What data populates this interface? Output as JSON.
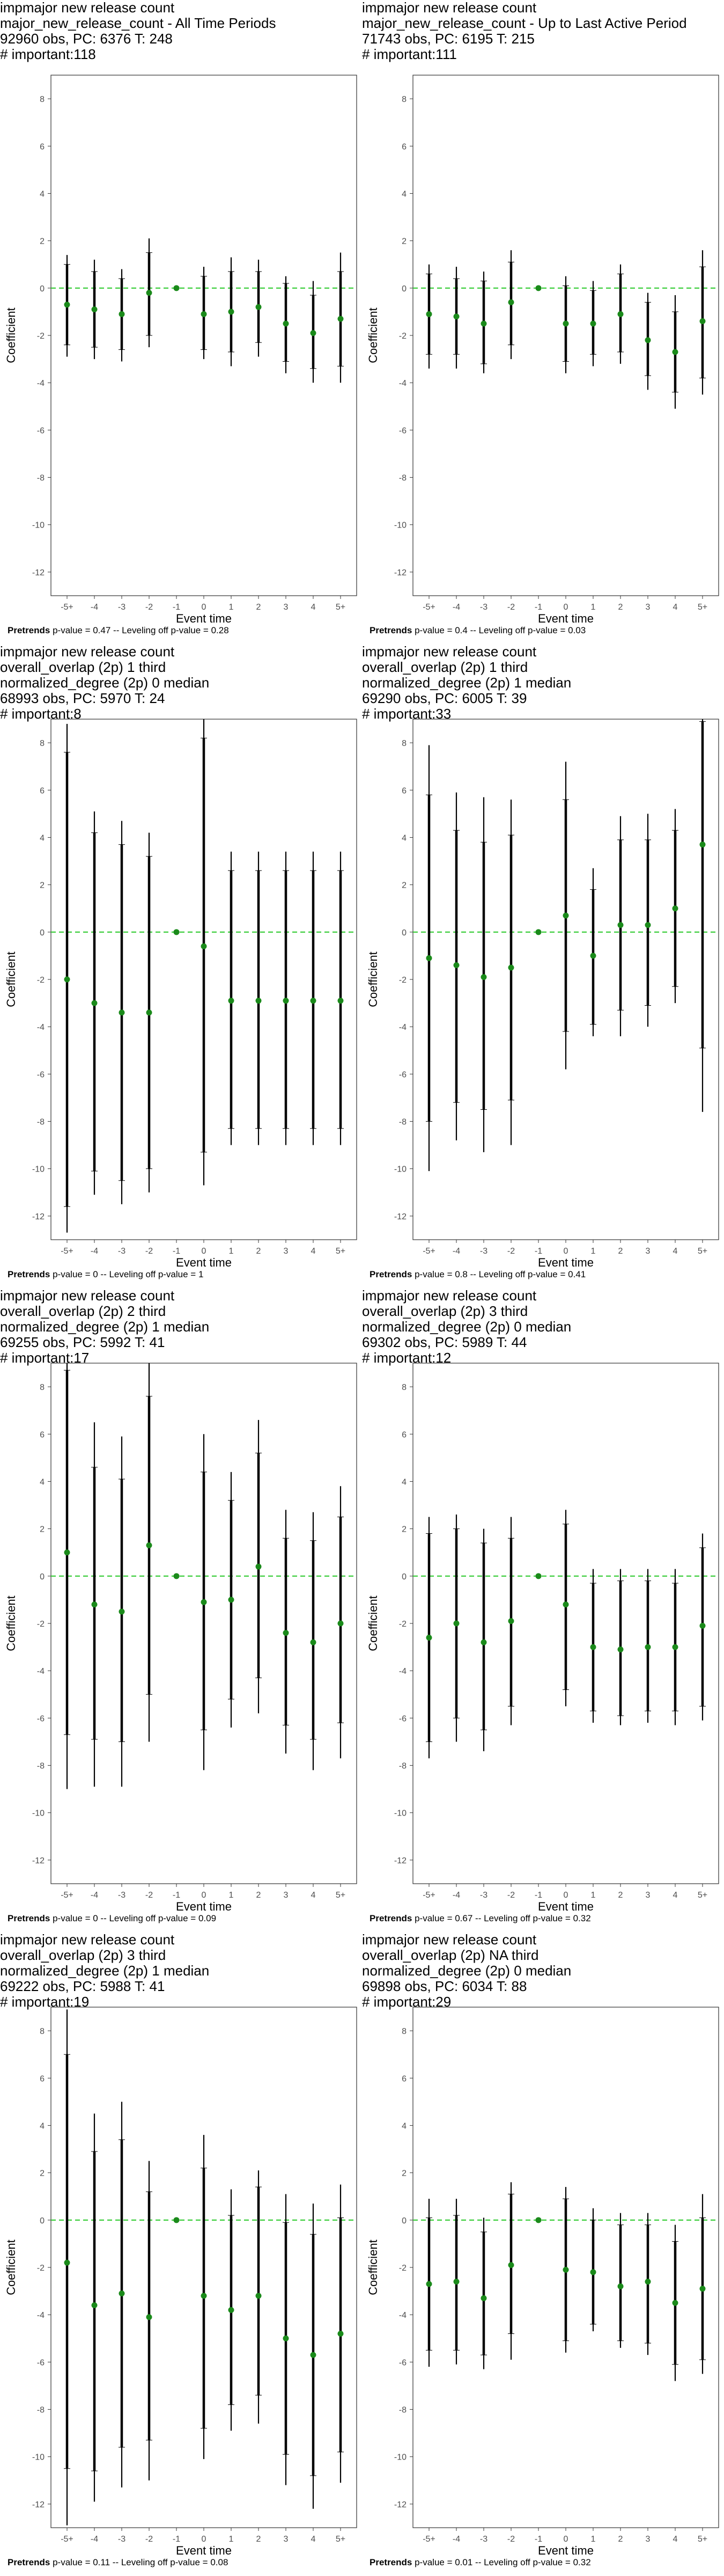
{
  "chart_data": [
    {
      "type": "scatter",
      "title_lines": [
        "impmajor new release count",
        "major_new_release_count - All Time Periods",
        "92960 obs, PC: 6376 T: 248",
        "# important:118"
      ],
      "xlabel": "Event time",
      "ylabel": "Coefficient",
      "categories": [
        "-5+",
        "-4",
        "-3",
        "-2",
        "-1",
        "0",
        "1",
        "2",
        "3",
        "4",
        "5+"
      ],
      "ylim": [
        -13,
        9
      ],
      "yticks": [
        -12,
        -10,
        -8,
        -6,
        -4,
        -2,
        0,
        2,
        4,
        6,
        8
      ],
      "coef": [
        -0.7,
        -0.9,
        -1.1,
        -0.2,
        0,
        -1.1,
        -1.0,
        -0.8,
        -1.5,
        -1.9,
        -1.3
      ],
      "ci90": [
        [
          -2.4,
          1.0
        ],
        [
          -2.5,
          0.7
        ],
        [
          -2.6,
          0.4
        ],
        [
          -2.0,
          1.5
        ],
        [
          0,
          0
        ],
        [
          -2.6,
          0.5
        ],
        [
          -2.7,
          0.7
        ],
        [
          -2.3,
          0.7
        ],
        [
          -3.1,
          0.2
        ],
        [
          -3.4,
          -0.3
        ],
        [
          -3.3,
          0.7
        ]
      ],
      "ci95": [
        [
          -2.9,
          1.4
        ],
        [
          -3.0,
          1.2
        ],
        [
          -3.1,
          0.8
        ],
        [
          -2.5,
          2.1
        ],
        [
          0,
          0
        ],
        [
          -3.0,
          0.9
        ],
        [
          -3.3,
          1.3
        ],
        [
          -2.9,
          1.2
        ],
        [
          -3.6,
          0.5
        ],
        [
          -4.0,
          0.3
        ],
        [
          -4.0,
          1.5
        ]
      ],
      "footer_label": "Pretrends",
      "footer_rest": " p-value = 0.47 -- Leveling off p-value = 0.28"
    },
    {
      "type": "scatter",
      "title_lines": [
        "impmajor new release count",
        "major_new_release_count - Up to Last Active Period",
        "71743 obs, PC: 6195 T: 215",
        "# important:111"
      ],
      "xlabel": "Event time",
      "ylabel": "Coefficient",
      "categories": [
        "-5+",
        "-4",
        "-3",
        "-2",
        "-1",
        "0",
        "1",
        "2",
        "3",
        "4",
        "5+"
      ],
      "ylim": [
        -13,
        9
      ],
      "yticks": [
        -12,
        -10,
        -8,
        -6,
        -4,
        -2,
        0,
        2,
        4,
        6,
        8
      ],
      "coef": [
        -1.1,
        -1.2,
        -1.5,
        -0.6,
        0,
        -1.5,
        -1.5,
        -1.1,
        -2.2,
        -2.7,
        -1.4
      ],
      "ci90": [
        [
          -2.8,
          0.6
        ],
        [
          -2.8,
          0.4
        ],
        [
          -3.2,
          0.3
        ],
        [
          -2.4,
          1.1
        ],
        [
          0,
          0
        ],
        [
          -3.1,
          0.1
        ],
        [
          -2.8,
          -0.1
        ],
        [
          -2.7,
          0.6
        ],
        [
          -3.7,
          -0.6
        ],
        [
          -4.4,
          -1.0
        ],
        [
          -3.8,
          0.9
        ]
      ],
      "ci95": [
        [
          -3.4,
          1.0
        ],
        [
          -3.4,
          0.9
        ],
        [
          -3.6,
          0.7
        ],
        [
          -3.0,
          1.6
        ],
        [
          0,
          0
        ],
        [
          -3.6,
          0.5
        ],
        [
          -3.3,
          0.3
        ],
        [
          -3.2,
          1.0
        ],
        [
          -4.3,
          -0.2
        ],
        [
          -5.1,
          -0.3
        ],
        [
          -4.5,
          1.6
        ]
      ],
      "footer_label": "Pretrends",
      "footer_rest": " p-value = 0.4 -- Leveling off p-value = 0.03"
    },
    {
      "type": "scatter",
      "title_lines": [
        "impmajor new release count",
        "overall_overlap (2p) 1 third",
        "normalized_degree (2p) 0 median",
        "68993 obs, PC: 5970 T: 24",
        "# important:8"
      ],
      "xlabel": "Event time",
      "ylabel": "Coefficient",
      "categories": [
        "-5+",
        "-4",
        "-3",
        "-2",
        "-1",
        "0",
        "1",
        "2",
        "3",
        "4",
        "5+"
      ],
      "ylim": [
        -13,
        9
      ],
      "yticks": [
        -12,
        -10,
        -8,
        -6,
        -4,
        -2,
        0,
        2,
        4,
        6,
        8
      ],
      "coef": [
        -2.0,
        -3.0,
        -3.4,
        -3.4,
        0,
        -0.6,
        -2.9,
        -2.9,
        -2.9,
        -2.9,
        -2.9
      ],
      "ci90": [
        [
          -11.6,
          7.6
        ],
        [
          -10.1,
          4.2
        ],
        [
          -10.5,
          3.7
        ],
        [
          -10.0,
          3.2
        ],
        [
          0,
          0
        ],
        [
          -9.3,
          8.2
        ],
        [
          -8.3,
          2.6
        ],
        [
          -8.3,
          2.6
        ],
        [
          -8.3,
          2.6
        ],
        [
          -8.3,
          2.6
        ],
        [
          -8.3,
          2.6
        ]
      ],
      "ci95": [
        [
          -12.7,
          8.8
        ],
        [
          -11.1,
          5.1
        ],
        [
          -11.5,
          4.7
        ],
        [
          -11.0,
          4.2
        ],
        [
          0,
          0
        ],
        [
          -10.7,
          9.5
        ],
        [
          -9.0,
          3.4
        ],
        [
          -9.0,
          3.4
        ],
        [
          -9.0,
          3.4
        ],
        [
          -9.0,
          3.4
        ],
        [
          -9.0,
          3.4
        ]
      ],
      "footer_label": "Pretrends",
      "footer_rest": " p-value = 0 -- Leveling off p-value = 1"
    },
    {
      "type": "scatter",
      "title_lines": [
        "impmajor new release count",
        "overall_overlap (2p) 1 third",
        "normalized_degree (2p) 1 median",
        "69290 obs, PC: 6005 T: 39",
        "# important:33"
      ],
      "xlabel": "Event time",
      "ylabel": "Coefficient",
      "categories": [
        "-5+",
        "-4",
        "-3",
        "-2",
        "-1",
        "0",
        "1",
        "2",
        "3",
        "4",
        "5+"
      ],
      "ylim": [
        -13,
        9
      ],
      "yticks": [
        -12,
        -10,
        -8,
        -6,
        -4,
        -2,
        0,
        2,
        4,
        6,
        8
      ],
      "coef": [
        -1.1,
        -1.4,
        -1.9,
        -1.5,
        0,
        0.7,
        -1.0,
        0.3,
        0.3,
        1.0,
        3.7
      ],
      "ci90": [
        [
          -8.0,
          5.8
        ],
        [
          -7.2,
          4.3
        ],
        [
          -7.5,
          3.8
        ],
        [
          -7.1,
          4.1
        ],
        [
          0,
          0
        ],
        [
          -4.2,
          5.6
        ],
        [
          -3.9,
          1.8
        ],
        [
          -3.3,
          3.9
        ],
        [
          -3.1,
          3.9
        ],
        [
          -2.3,
          4.3
        ],
        [
          -4.9,
          8.9
        ]
      ],
      "ci95": [
        [
          -10.1,
          7.9
        ],
        [
          -8.8,
          5.9
        ],
        [
          -9.3,
          5.7
        ],
        [
          -9.0,
          5.6
        ],
        [
          0,
          0
        ],
        [
          -5.8,
          7.2
        ],
        [
          -4.4,
          2.7
        ],
        [
          -4.4,
          4.9
        ],
        [
          -4.0,
          5.0
        ],
        [
          -3.0,
          5.2
        ],
        [
          -7.6,
          9.0
        ]
      ],
      "footer_label": "Pretrends",
      "footer_rest": " p-value = 0.8 -- Leveling off p-value = 0.41"
    },
    {
      "type": "scatter",
      "title_lines": [
        "impmajor new release count",
        "overall_overlap (2p) 2 third",
        "normalized_degree (2p) 1 median",
        "69255 obs, PC: 5992 T: 41",
        "# important:17"
      ],
      "xlabel": "Event time",
      "ylabel": "Coefficient",
      "categories": [
        "-5+",
        "-4",
        "-3",
        "-2",
        "-1",
        "0",
        "1",
        "2",
        "3",
        "4",
        "5+"
      ],
      "ylim": [
        -13,
        9
      ],
      "yticks": [
        -12,
        -10,
        -8,
        -6,
        -4,
        -2,
        0,
        2,
        4,
        6,
        8
      ],
      "coef": [
        1.0,
        -1.2,
        -1.5,
        1.3,
        0,
        -1.1,
        -1.0,
        0.4,
        -2.4,
        -2.8,
        -2.0
      ],
      "ci90": [
        [
          -6.7,
          8.7
        ],
        [
          -6.9,
          4.6
        ],
        [
          -7.0,
          4.1
        ],
        [
          -5.0,
          7.6
        ],
        [
          0,
          0
        ],
        [
          -6.5,
          4.4
        ],
        [
          -5.2,
          3.2
        ],
        [
          -4.3,
          5.2
        ],
        [
          -6.3,
          1.6
        ],
        [
          -6.9,
          1.5
        ],
        [
          -6.2,
          2.5
        ]
      ],
      "ci95": [
        [
          -9.0,
          9.0
        ],
        [
          -8.9,
          6.5
        ],
        [
          -8.9,
          5.9
        ],
        [
          -7.0,
          9.0
        ],
        [
          0,
          0
        ],
        [
          -8.2,
          6.0
        ],
        [
          -6.4,
          4.4
        ],
        [
          -5.8,
          6.6
        ],
        [
          -7.5,
          2.8
        ],
        [
          -8.2,
          2.7
        ],
        [
          -7.7,
          3.8
        ]
      ],
      "footer_label": "Pretrends",
      "footer_rest": " p-value = 0 -- Leveling off p-value = 0.09"
    },
    {
      "type": "scatter",
      "title_lines": [
        "impmajor new release count",
        "overall_overlap (2p) 3 third",
        "normalized_degree (2p) 0 median",
        "69302 obs, PC: 5989 T: 44",
        "# important:12"
      ],
      "xlabel": "Event time",
      "ylabel": "Coefficient",
      "categories": [
        "-5+",
        "-4",
        "-3",
        "-2",
        "-1",
        "0",
        "1",
        "2",
        "3",
        "4",
        "5+"
      ],
      "ylim": [
        -13,
        9
      ],
      "yticks": [
        -12,
        -10,
        -8,
        -6,
        -4,
        -2,
        0,
        2,
        4,
        6,
        8
      ],
      "coef": [
        -2.6,
        -2.0,
        -2.8,
        -1.9,
        0,
        -1.2,
        -3.0,
        -3.1,
        -3.0,
        -3.0,
        -2.1
      ],
      "ci90": [
        [
          -7.0,
          1.8
        ],
        [
          -6.0,
          2.0
        ],
        [
          -6.5,
          1.4
        ],
        [
          -5.5,
          1.6
        ],
        [
          0,
          0
        ],
        [
          -4.8,
          2.2
        ],
        [
          -5.7,
          -0.3
        ],
        [
          -5.9,
          -0.2
        ],
        [
          -5.7,
          -0.2
        ],
        [
          -5.7,
          -0.3
        ],
        [
          -5.5,
          1.2
        ]
      ],
      "ci95": [
        [
          -7.7,
          2.5
        ],
        [
          -7.0,
          2.6
        ],
        [
          -7.4,
          2.0
        ],
        [
          -6.3,
          2.5
        ],
        [
          0,
          0
        ],
        [
          -5.5,
          2.8
        ],
        [
          -6.2,
          0.3
        ],
        [
          -6.3,
          0.3
        ],
        [
          -6.2,
          0.3
        ],
        [
          -6.3,
          0.3
        ],
        [
          -6.1,
          1.8
        ]
      ],
      "footer_label": "Pretrends",
      "footer_rest": " p-value = 0.67 -- Leveling off p-value = 0.32"
    },
    {
      "type": "scatter",
      "title_lines": [
        "impmajor new release count",
        "overall_overlap (2p) 3 third",
        "normalized_degree (2p) 1 median",
        "69222 obs, PC: 5988 T: 41",
        "# important:19"
      ],
      "xlabel": "Event time",
      "ylabel": "Coefficient",
      "categories": [
        "-5+",
        "-4",
        "-3",
        "-2",
        "-1",
        "0",
        "1",
        "2",
        "3",
        "4",
        "5+"
      ],
      "ylim": [
        -13,
        9
      ],
      "yticks": [
        -12,
        -10,
        -8,
        -6,
        -4,
        -2,
        0,
        2,
        4,
        6,
        8
      ],
      "coef": [
        -1.8,
        -3.6,
        -3.1,
        -4.1,
        0,
        -3.2,
        -3.8,
        -3.2,
        -5.0,
        -5.7,
        -4.8
      ],
      "ci90": [
        [
          -10.5,
          7.0
        ],
        [
          -10.6,
          2.9
        ],
        [
          -9.6,
          3.4
        ],
        [
          -9.3,
          1.2
        ],
        [
          0,
          0
        ],
        [
          -8.8,
          2.2
        ],
        [
          -7.8,
          0.2
        ],
        [
          -7.4,
          1.4
        ],
        [
          -9.9,
          -0.1
        ],
        [
          -10.8,
          -0.6
        ],
        [
          -9.8,
          0.1
        ]
      ],
      "ci95": [
        [
          -12.9,
          8.9
        ],
        [
          -11.9,
          4.5
        ],
        [
          -11.3,
          5.0
        ],
        [
          -11.0,
          2.5
        ],
        [
          0,
          0
        ],
        [
          -10.1,
          3.6
        ],
        [
          -8.9,
          1.3
        ],
        [
          -8.6,
          2.1
        ],
        [
          -11.2,
          1.1
        ],
        [
          -12.2,
          0.7
        ],
        [
          -11.1,
          1.5
        ]
      ],
      "footer_label": "Pretrends",
      "footer_rest": " p-value = 0.11 -- Leveling off p-value = 0.08"
    },
    {
      "type": "scatter",
      "title_lines": [
        "impmajor new release count",
        "overall_overlap (2p) NA third",
        "normalized_degree (2p) 0 median",
        "69898 obs, PC: 6034 T: 88",
        "# important:29"
      ],
      "xlabel": "Event time",
      "ylabel": "Coefficient",
      "categories": [
        "-5+",
        "-4",
        "-3",
        "-2",
        "-1",
        "0",
        "1",
        "2",
        "3",
        "4",
        "5+"
      ],
      "ylim": [
        -13,
        9
      ],
      "yticks": [
        -12,
        -10,
        -8,
        -6,
        -4,
        -2,
        0,
        2,
        4,
        6,
        8
      ],
      "coef": [
        -2.7,
        -2.6,
        -3.3,
        -1.9,
        0,
        -2.1,
        -2.2,
        -2.8,
        -2.6,
        -3.5,
        -2.9
      ],
      "ci90": [
        [
          -5.5,
          0.1
        ],
        [
          -5.5,
          0.2
        ],
        [
          -5.7,
          -0.5
        ],
        [
          -4.8,
          1.1
        ],
        [
          0,
          0
        ],
        [
          -5.1,
          0.9
        ],
        [
          -4.4,
          0.0
        ],
        [
          -5.1,
          -0.2
        ],
        [
          -5.2,
          -0.2
        ],
        [
          -6.1,
          -0.9
        ],
        [
          -5.9,
          0.1
        ]
      ],
      "ci95": [
        [
          -6.2,
          0.9
        ],
        [
          -6.1,
          0.9
        ],
        [
          -6.3,
          0.1
        ],
        [
          -5.9,
          1.6
        ],
        [
          0,
          0
        ],
        [
          -5.6,
          1.4
        ],
        [
          -4.7,
          0.5
        ],
        [
          -5.4,
          0.3
        ],
        [
          -5.7,
          0.3
        ],
        [
          -6.8,
          -0.2
        ],
        [
          -6.5,
          1.1
        ]
      ],
      "footer_label": "Pretrends",
      "footer_rest": " p-value = 0.01 -- Leveling off p-value = 0.32"
    }
  ],
  "colors": {
    "point": "#1a8a1a",
    "zero_line": "#33cc33",
    "whisker": "#000000",
    "frame": "#333333",
    "tick_text": "#4d4d4d"
  }
}
